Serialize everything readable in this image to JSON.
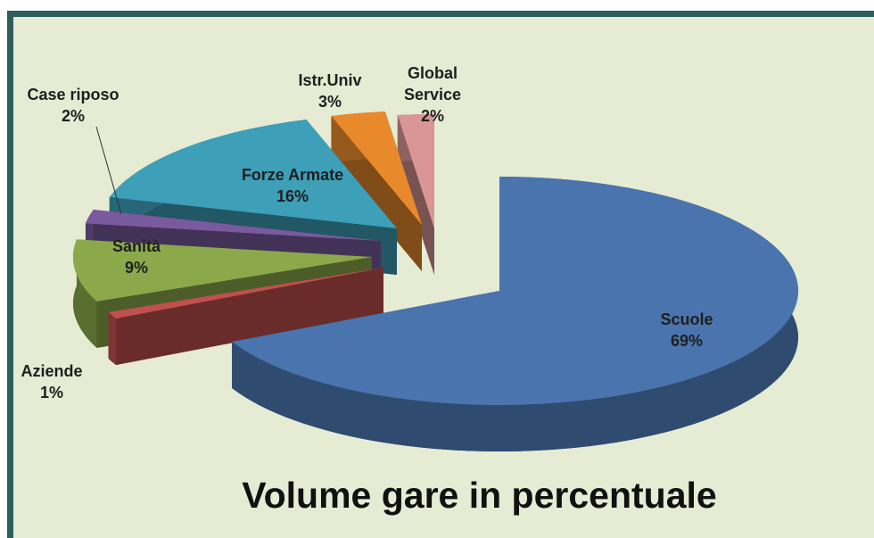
{
  "chart_data": {
    "type": "pie3d",
    "title": "Volume gare in percentuale",
    "categories": [
      "Scuole",
      "Aziende",
      "Sanità",
      "Case riposo",
      "Forze Armate",
      "Istr.Univ",
      "Global Service"
    ],
    "values": [
      69,
      1,
      9,
      2,
      16,
      3,
      2
    ],
    "value_labels": [
      "69%",
      "1%",
      "9%",
      "2%",
      "16%",
      "3%",
      "2%"
    ],
    "colors": [
      "#4a74ad",
      "#c0504d",
      "#8ba94b",
      "#7a5a9e",
      "#3d9fb8",
      "#e88a2c",
      "#d99694"
    ]
  }
}
